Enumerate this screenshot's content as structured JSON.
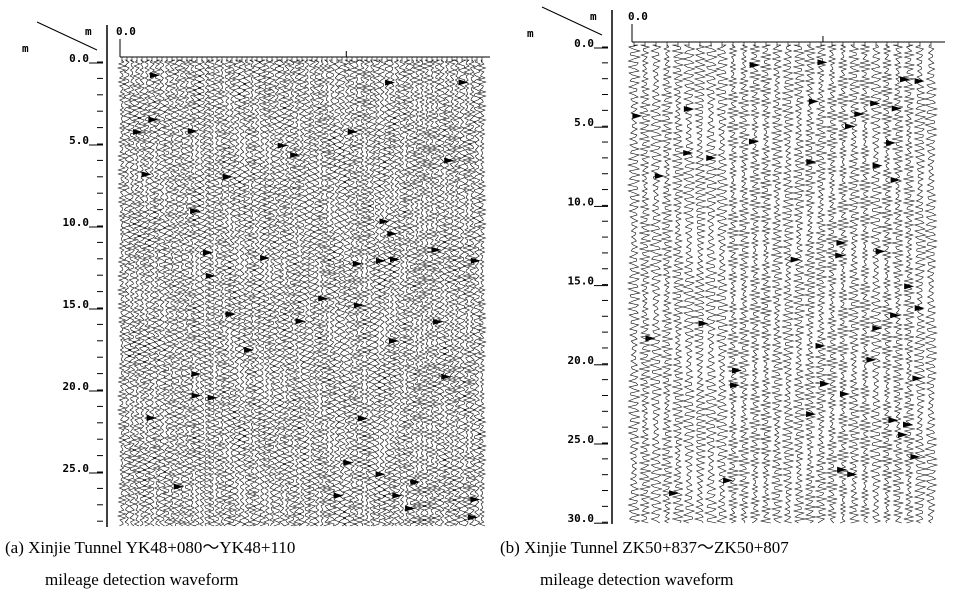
{
  "panels": [
    {
      "corner_x_unit": "m",
      "corner_y_unit": "m",
      "x_start_label": "0.0",
      "y_labels": [
        "0.0",
        "5.0",
        "10.0",
        "15.0",
        "20.0",
        "25.0"
      ],
      "caption_line1": "(a) Xinjie Tunnel YK48+080～YK48+110",
      "caption_line2": "mileage detection waveform"
    },
    {
      "corner_x_unit": "m",
      "corner_y_unit": "m",
      "x_start_label": "0.0",
      "y_labels": [
        "0.0",
        "5.0",
        "10.0",
        "15.0",
        "20.0",
        "25.0",
        "30.0"
      ],
      "caption_line1": "(b) Xinjie Tunnel ZK50+837～ZK50+807",
      "caption_line2": "mileage detection waveform"
    }
  ]
}
